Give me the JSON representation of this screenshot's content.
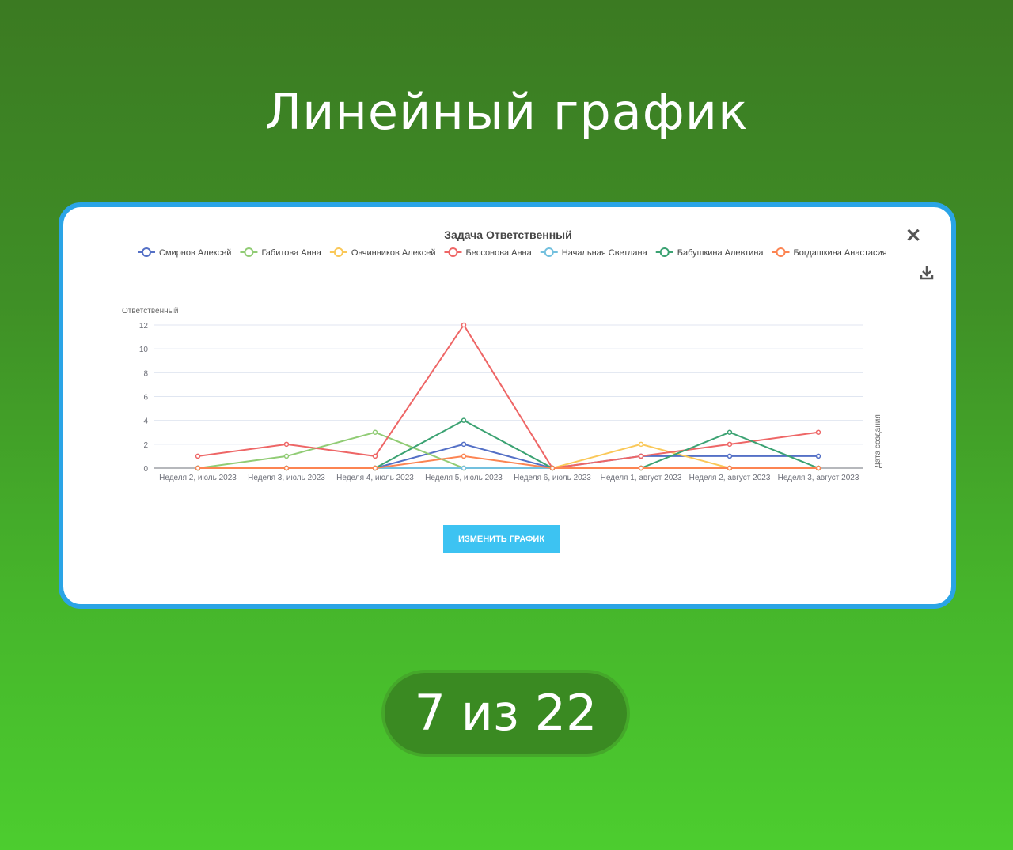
{
  "headline": "Линейный график",
  "pagination": "7 из 22",
  "modal": {
    "edit_button": "ИЗМЕНИТЬ ГРАФИК",
    "close_icon": "close-icon",
    "download_icon": "download-icon"
  },
  "colors": {
    "card_border": "#2aa4e6",
    "button": "#3dc3f2"
  },
  "chart_data": {
    "type": "line",
    "title": "Задача Ответственный",
    "ylabel": "Ответственный",
    "xlabel": "Дата создания",
    "ylim": [
      0,
      12
    ],
    "yticks": [
      0,
      2,
      4,
      6,
      8,
      10,
      12
    ],
    "grid": true,
    "legend": "top",
    "categories": [
      "Неделя 2, июль 2023",
      "Неделя 3, июль 2023",
      "Неделя 4, июль 2023",
      "Неделя 5, июль 2023",
      "Неделя 6, июль 2023",
      "Неделя 1, август 2023",
      "Неделя 2, август 2023",
      "Неделя 3, август 2023"
    ],
    "series": [
      {
        "name": "Смирнов Алексей",
        "color": "#5470c6",
        "values": [
          0,
          0,
          0,
          2,
          0,
          1,
          1,
          1
        ]
      },
      {
        "name": "Габитова Анна",
        "color": "#91cc75",
        "values": [
          0,
          1,
          3,
          0,
          0,
          0,
          0,
          0
        ]
      },
      {
        "name": "Овчинников Алексей",
        "color": "#fac858",
        "values": [
          0,
          0,
          0,
          0,
          0,
          2,
          0,
          0
        ]
      },
      {
        "name": "Бессонова Анна",
        "color": "#ee6666",
        "values": [
          1,
          2,
          1,
          12,
          0,
          1,
          2,
          3
        ]
      },
      {
        "name": "Начальная Светлана",
        "color": "#73c0de",
        "values": [
          0,
          0,
          0,
          0,
          0,
          0,
          0,
          0
        ]
      },
      {
        "name": "Бабушкина Алевтина",
        "color": "#3ba272",
        "values": [
          0,
          0,
          0,
          4,
          0,
          0,
          3,
          0
        ]
      },
      {
        "name": "Богдашкина Анастасия",
        "color": "#fc8452",
        "values": [
          0,
          0,
          0,
          1,
          0,
          0,
          0,
          0
        ]
      }
    ]
  }
}
